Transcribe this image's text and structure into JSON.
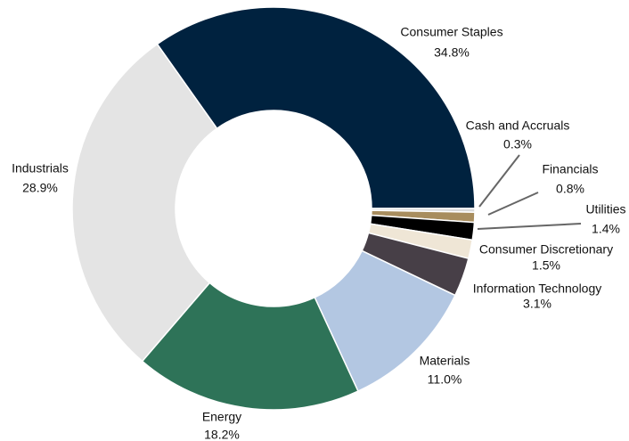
{
  "chart_data": {
    "type": "donut",
    "categories": [
      "Consumer Staples",
      "Cash and Accruals",
      "Financials",
      "Utilities",
      "Consumer Discretionary",
      "Information Technology",
      "Materials",
      "Energy",
      "Industrials"
    ],
    "values": [
      34.8,
      0.3,
      0.8,
      1.4,
      1.5,
      3.1,
      11.0,
      18.2,
      28.9
    ],
    "value_labels": [
      "34.8%",
      "0.3%",
      "0.8%",
      "1.4%",
      "1.5%",
      "3.1%",
      "11.0%",
      "18.2%",
      "28.9%"
    ],
    "colors": [
      "#00223f",
      "#d9d9d9",
      "#a88d5e",
      "#000000",
      "#efe6d6",
      "#473f47",
      "#b3c7e2",
      "#2e7358",
      "#e4e4e4"
    ]
  }
}
